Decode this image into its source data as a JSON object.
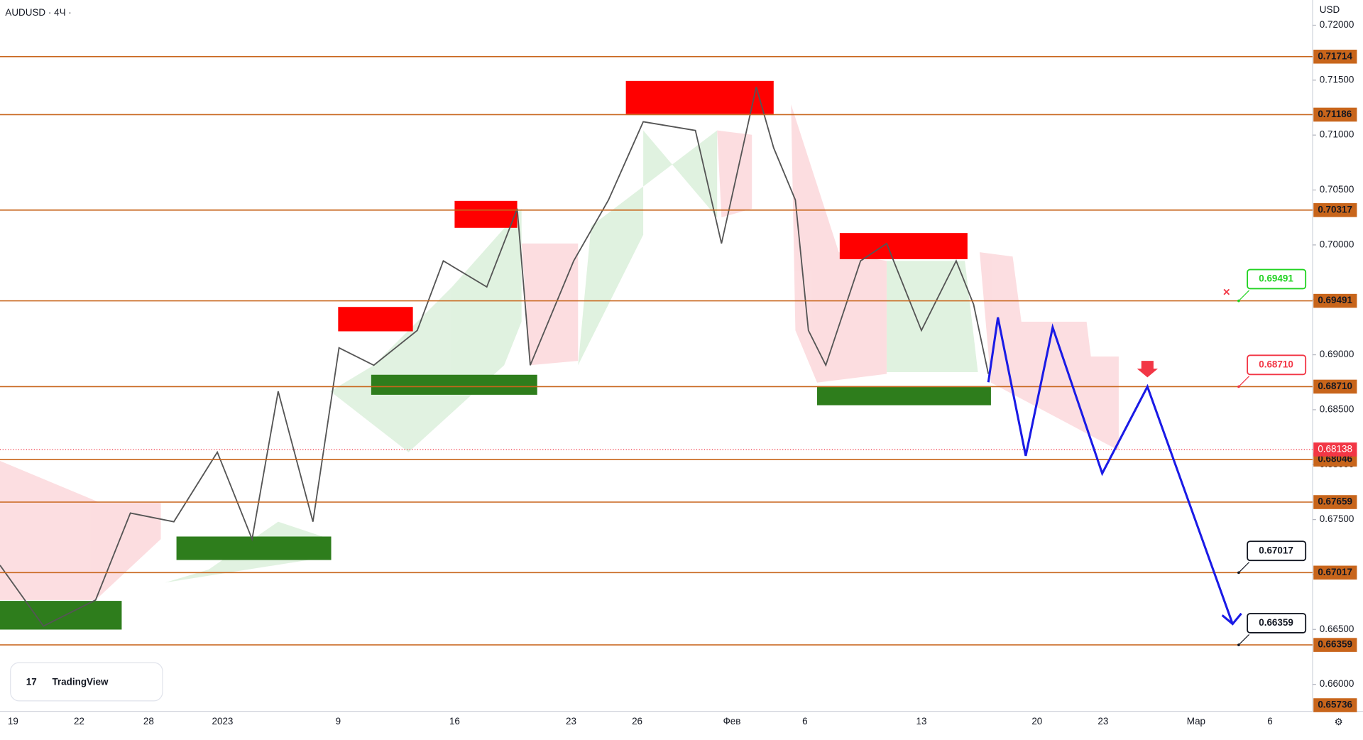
{
  "chart_data": {
    "type": "price-levels",
    "symbol": "AUDUSD · 4Ч ·",
    "currency": "USD",
    "logo": "TradingView",
    "ylim": [
      0.66,
      0.72
    ],
    "yticks": [
      {
        "value": 0.72,
        "label": "0.72000"
      },
      {
        "value": 0.715,
        "label": "0.71500"
      },
      {
        "value": 0.71,
        "label": "0.71000"
      },
      {
        "value": 0.705,
        "label": "0.70500"
      },
      {
        "value": 0.7,
        "label": "0.70000"
      },
      {
        "value": 0.695,
        "label": "0.69500"
      },
      {
        "value": 0.69,
        "label": "0.69000"
      },
      {
        "value": 0.685,
        "label": "0.68500"
      },
      {
        "value": 0.68,
        "label": "0.68000"
      },
      {
        "value": 0.675,
        "label": "0.67500"
      },
      {
        "value": 0.67,
        "label": "0.67000"
      },
      {
        "value": 0.665,
        "label": "0.66500"
      },
      {
        "value": 0.66,
        "label": "0.66000"
      }
    ],
    "levels": [
      0.71714,
      0.71186,
      0.70317,
      0.69491,
      {
        "value": 0.6871,
        "label": "0.68710"
      },
      0.68046,
      0.67659,
      0.67017,
      0.66359
    ],
    "current_price": 0.68138,
    "bottom_price": 0.65736,
    "x_labels": [
      "19",
      "22",
      "28",
      "2023",
      "9",
      "16",
      "23",
      "26",
      "Фев",
      "6",
      "13",
      "20",
      "23",
      "Мар",
      "6"
    ],
    "callouts": [
      {
        "price": 0.69491,
        "color": "#22d322"
      },
      {
        "price": {
          "value": 0.6871,
          "label": "0.68710"
        },
        "color": "#f23645"
      },
      {
        "price": 0.67017,
        "color": "#131722"
      },
      {
        "price": 0.66359,
        "color": "#131722"
      }
    ],
    "projection": [
      0.6875,
      0.6934,
      0.6808,
      0.6925,
      0.6792,
      0.6871,
      0.6655
    ],
    "level_color": "#c8651b",
    "projection_color": "#1a1ae6"
  }
}
